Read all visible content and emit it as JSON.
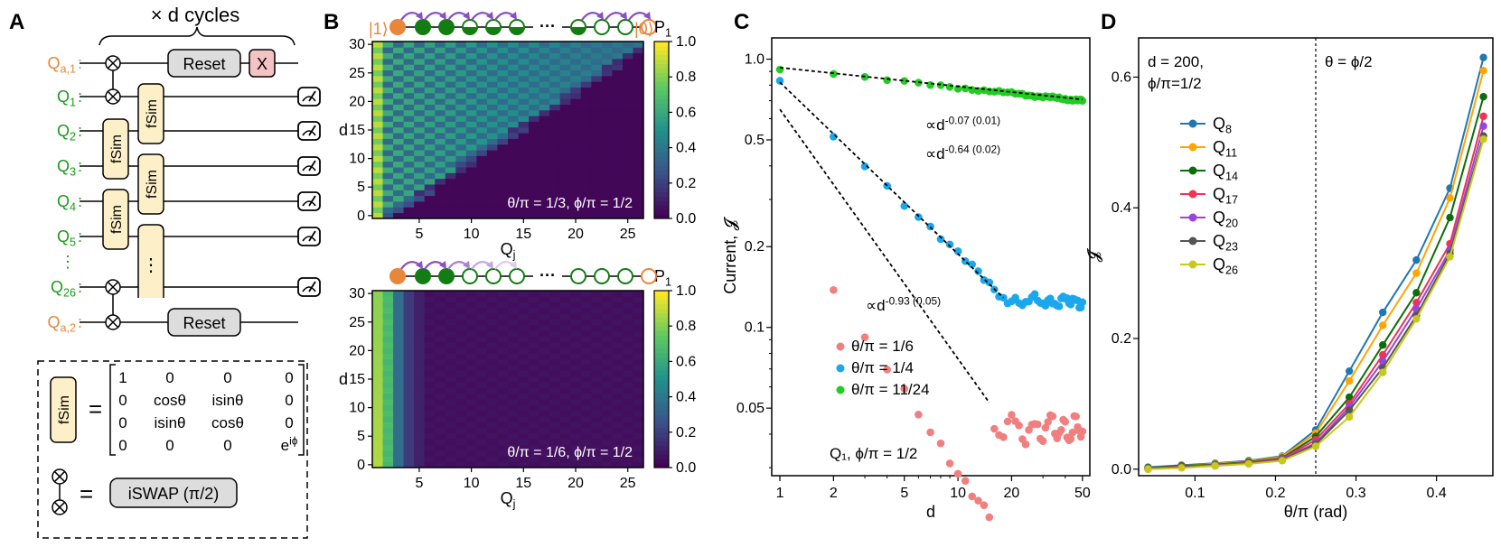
{
  "panels": {
    "a": "A",
    "b": "B",
    "c": "C",
    "d": "D"
  },
  "circuit": {
    "cycles": "× d cycles",
    "qubits": [
      {
        "label": "Q",
        "sub": "a,1",
        "color": "#e8863a"
      },
      {
        "label": "Q",
        "sub": "1",
        "color": "#1a9a1a"
      },
      {
        "label": "Q",
        "sub": "2",
        "color": "#1a9a1a"
      },
      {
        "label": "Q",
        "sub": "3",
        "color": "#1a9a1a"
      },
      {
        "label": "Q",
        "sub": "4",
        "color": "#1a9a1a"
      },
      {
        "label": "Q",
        "sub": "5",
        "color": "#1a9a1a"
      },
      {
        "label": "⋮",
        "sub": "",
        "color": "#1a9a1a"
      },
      {
        "label": "Q",
        "sub": "26",
        "color": "#1a9a1a"
      },
      {
        "label": "Q",
        "sub": "a,2",
        "color": "#e8863a"
      }
    ],
    "reset": "Reset",
    "x_gate": "X",
    "fsim": "fSim",
    "ellipsis": "⋮",
    "legend": {
      "fsim": "fSim",
      "eq": "=",
      "matrix": [
        [
          "1",
          "0",
          "0",
          "0"
        ],
        [
          "0",
          "cosθ",
          "isinθ",
          "0"
        ],
        [
          "0",
          "isinθ",
          "cosθ",
          "0"
        ],
        [
          "0",
          "0",
          "0",
          "e^iϕ"
        ]
      ],
      "iswap": "iSWAP (π/2)"
    }
  },
  "heatmaps": [
    {
      "left_ket": "|1⟩",
      "right_ket": "|0⟩",
      "annotation": "θ/π = 1/3, ϕ/π = 1/2",
      "xlabel": "Q",
      "xlabel_sub": "j",
      "ylabel": "d",
      "colorbar_label": "P",
      "colorbar_sub": "1"
    },
    {
      "annotation": "θ/π = 1/6, ϕ/π = 1/2",
      "xlabel": "Q",
      "xlabel_sub": "j",
      "ylabel": "d",
      "colorbar_label": "P",
      "colorbar_sub": "1"
    }
  ],
  "heat_axes": {
    "xticks": [
      "5",
      "10",
      "15",
      "20",
      "25"
    ],
    "yticks": [
      "0",
      "5",
      "10",
      "15",
      "20",
      "25",
      "30"
    ],
    "cbticks": [
      "0.0",
      "0.2",
      "0.4",
      "0.6",
      "0.8",
      "1.0"
    ]
  },
  "chart_data": [
    {
      "panel": "C",
      "type": "scatter",
      "xscale": "log",
      "yscale": "log",
      "xlabel": "d",
      "ylabel": "Current, 𝓙",
      "xlim": [
        0.9,
        55
      ],
      "ylim": [
        0.028,
        1.2
      ],
      "xticks": [
        1,
        2,
        5,
        10,
        20,
        50
      ],
      "yticks": [
        0.05,
        0.1,
        0.2,
        0.5,
        1.0
      ],
      "ytick_labels": [
        "0.05",
        "0.1",
        "0.2",
        "0.5",
        "1.0"
      ],
      "annotation": "Q₁, ϕ/π = 1/2",
      "fit_labels": [
        {
          "text": "∝d",
          "exp": "-0.07 (0.01)"
        },
        {
          "text": "∝d",
          "exp": "-0.64 (0.02)"
        },
        {
          "text": "∝d",
          "exp": "-0.93 (0.05)"
        }
      ],
      "series": [
        {
          "name": "θ/π = 1/6",
          "color": "#f08080",
          "a": 0.25,
          "b": -0.93,
          "d_min": 2,
          "spread": 0.06
        },
        {
          "name": "θ/π = 1/4",
          "color": "#1aa7ec",
          "a": 0.82,
          "b": -0.64,
          "d_min": 1,
          "spread": 0.035
        },
        {
          "name": "θ/π = 11/24",
          "color": "#22cc22",
          "a": 0.92,
          "b": -0.07,
          "d_min": 1,
          "spread": 0.012
        }
      ]
    },
    {
      "panel": "D",
      "type": "line",
      "xlabel": "θ/π (rad)",
      "ylabel": "𝓙",
      "xlim": [
        0.03,
        0.47
      ],
      "ylim": [
        -0.01,
        0.66
      ],
      "xticks": [
        0.1,
        0.2,
        0.3,
        0.4
      ],
      "yticks": [
        0.0,
        0.2,
        0.4,
        0.6
      ],
      "ytick_labels": [
        "0.0",
        "0.2",
        "0.4",
        "0.6"
      ],
      "vline": 0.25,
      "vline_label": "θ = ϕ/2",
      "corner_label_1": "d = 200,",
      "corner_label_2": "ϕ/π=1/2",
      "x": [
        0.0417,
        0.0833,
        0.125,
        0.1667,
        0.2083,
        0.25,
        0.2917,
        0.3333,
        0.375,
        0.4167,
        0.4583
      ],
      "series": [
        {
          "name": "Q",
          "sub": "8",
          "color": "#1f77b4",
          "values": [
            0.003,
            0.006,
            0.009,
            0.013,
            0.02,
            0.06,
            0.15,
            0.24,
            0.32,
            0.43,
            0.63
          ]
        },
        {
          "name": "Q",
          "sub": "11",
          "color": "#ffa500",
          "values": [
            0.002,
            0.005,
            0.008,
            0.012,
            0.019,
            0.055,
            0.135,
            0.22,
            0.3,
            0.415,
            0.61
          ]
        },
        {
          "name": "Q",
          "sub": "14",
          "color": "#0a6e0a",
          "values": [
            0.002,
            0.005,
            0.007,
            0.011,
            0.017,
            0.05,
            0.11,
            0.19,
            0.27,
            0.385,
            0.57
          ]
        },
        {
          "name": "Q",
          "sub": "17",
          "color": "#ee3355",
          "values": [
            0.001,
            0.004,
            0.006,
            0.01,
            0.016,
            0.045,
            0.1,
            0.175,
            0.255,
            0.345,
            0.54
          ]
        },
        {
          "name": "Q",
          "sub": "20",
          "color": "#9944dd",
          "values": [
            0.001,
            0.003,
            0.006,
            0.009,
            0.015,
            0.04,
            0.095,
            0.165,
            0.245,
            0.335,
            0.525
          ]
        },
        {
          "name": "Q",
          "sub": "23",
          "color": "#555555",
          "values": [
            0.0,
            0.003,
            0.005,
            0.009,
            0.014,
            0.038,
            0.09,
            0.155,
            0.235,
            0.33,
            0.51
          ]
        },
        {
          "name": "Q",
          "sub": "26",
          "color": "#c8c81a",
          "values": [
            0.0,
            0.002,
            0.005,
            0.008,
            0.013,
            0.035,
            0.08,
            0.148,
            0.23,
            0.325,
            0.505
          ]
        }
      ]
    }
  ]
}
